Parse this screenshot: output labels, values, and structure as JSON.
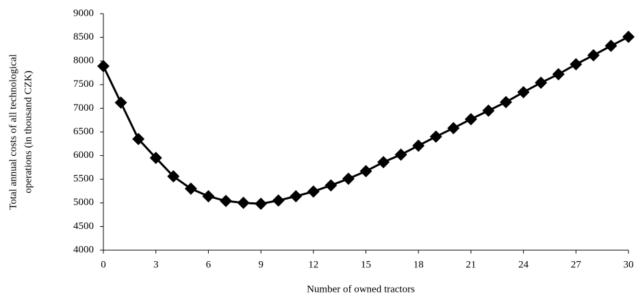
{
  "chart_data": {
    "type": "line",
    "xlabel": "Number of owned tractors",
    "ylabel": [
      "Total annual costs of all technological",
      "operations  (in thousand CZK)"
    ],
    "x": [
      0,
      1,
      2,
      3,
      4,
      5,
      6,
      7,
      8,
      9,
      10,
      11,
      12,
      13,
      14,
      15,
      16,
      17,
      18,
      19,
      20,
      21,
      22,
      23,
      24,
      25,
      26,
      27,
      28,
      29,
      30
    ],
    "series": [
      {
        "color": "#000000",
        "values": [
          7890,
          7120,
          6350,
          5950,
          5560,
          5300,
          5140,
          5040,
          5000,
          4980,
          5050,
          5140,
          5240,
          5370,
          5510,
          5670,
          5860,
          6020,
          6210,
          6400,
          6580,
          6770,
          6950,
          7130,
          7340,
          7540,
          7720,
          7930,
          8120,
          8320,
          8510
        ]
      }
    ],
    "xlim": [
      0,
      30
    ],
    "xticks": [
      0,
      3,
      6,
      9,
      12,
      15,
      18,
      21,
      24,
      27,
      30
    ],
    "ylim": [
      4000,
      9000
    ],
    "yticks": [
      4000,
      4500,
      5000,
      5500,
      6000,
      6500,
      7000,
      7500,
      8000,
      8500,
      9000
    ],
    "grid": false
  }
}
